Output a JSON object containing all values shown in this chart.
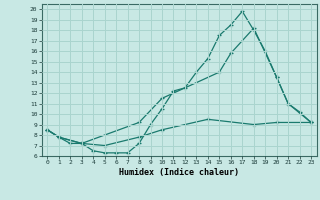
{
  "xlabel": "Humidex (Indice chaleur)",
  "xlim": [
    -0.5,
    23.5
  ],
  "ylim": [
    6,
    20.5
  ],
  "xticks": [
    0,
    1,
    2,
    3,
    4,
    5,
    6,
    7,
    8,
    9,
    10,
    11,
    12,
    13,
    14,
    15,
    16,
    17,
    18,
    19,
    20,
    21,
    22,
    23
  ],
  "yticks": [
    6,
    7,
    8,
    9,
    10,
    11,
    12,
    13,
    14,
    15,
    16,
    17,
    18,
    19,
    20
  ],
  "bg_color": "#c8e8e4",
  "line_color": "#1a7a6e",
  "grid_color": "#aad4ce",
  "line1_x": [
    0,
    1,
    2,
    3,
    4,
    5,
    6,
    7,
    8,
    9,
    10,
    11,
    12,
    13,
    14,
    15,
    16,
    17,
    18,
    19,
    20,
    21,
    22,
    23
  ],
  "line1_y": [
    8.5,
    7.8,
    7.2,
    7.2,
    6.5,
    6.3,
    6.3,
    6.3,
    7.2,
    9.0,
    10.5,
    12.2,
    12.5,
    14.0,
    15.3,
    17.5,
    18.5,
    19.8,
    18.0,
    16.0,
    13.5,
    11.0,
    10.2,
    9.2
  ],
  "line2_x": [
    0,
    1,
    3,
    8,
    10,
    15,
    16,
    18,
    20,
    21,
    23
  ],
  "line2_y": [
    8.5,
    7.8,
    7.2,
    9.2,
    11.5,
    14.0,
    15.8,
    18.2,
    13.5,
    11.0,
    9.2
  ],
  "line3_x": [
    0,
    1,
    3,
    5,
    8,
    10,
    14,
    18,
    20,
    23
  ],
  "line3_y": [
    8.5,
    7.8,
    7.2,
    7.0,
    7.8,
    8.5,
    9.5,
    9.0,
    9.2,
    9.2
  ]
}
